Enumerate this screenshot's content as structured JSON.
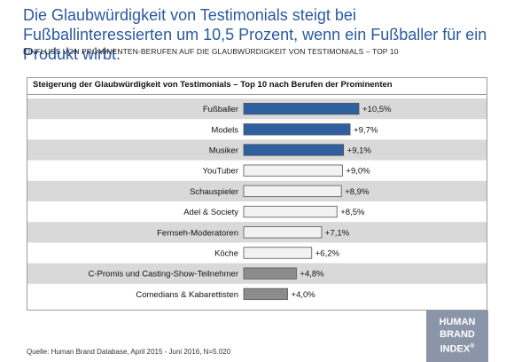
{
  "headline": "Die Glaubwürdigkeit von Testimonials steigt bei Fußballinteressierten um 10,5 Prozent, wenn ein Fußballer für ein Produkt wirbt.",
  "subtitle": "EINFLUSS VON PROMINENTEN-BERUFEN AUF DIE GLAUBWÜRDIGKEIT VON TESTIMONIALS – TOP 10",
  "source": "Quelle: Human Brand Database, April 2015 - Juni 2016, N=5.020",
  "logo": {
    "line1": "HUMAN",
    "line2": "BRAND",
    "line3": "INDEX",
    "mark": "®"
  },
  "chart_data": {
    "type": "bar",
    "orientation": "horizontal",
    "title": "Steigerung der Glaubwürdigkeit von Testimonials – Top 10 nach Berufen der Prominenten",
    "categories": [
      "Fußballer",
      "Models",
      "Musiker",
      "YouTuber",
      "Schauspieler",
      "Adel & Society",
      "Fernseh-Moderatoren",
      "Köche",
      "C-Promis und Casting-Show-Teilnehmer",
      "Comedians & Kabarettisten"
    ],
    "values": [
      10.5,
      9.7,
      9.1,
      9.0,
      8.9,
      8.5,
      7.1,
      6.2,
      4.8,
      4.0
    ],
    "labels": [
      "+10,5%",
      "+9,7%",
      "+9,1%",
      "+9,0%",
      "+8,9%",
      "+8,5%",
      "+7,1%",
      "+6,2%",
      "+4,8%",
      "+4,0%"
    ],
    "bar_groups": [
      "top",
      "top",
      "top",
      "middle",
      "middle",
      "middle",
      "middle",
      "middle",
      "bottom",
      "bottom"
    ],
    "xlim": [
      0,
      12
    ],
    "grid": false,
    "legend": "none",
    "colors": {
      "top": "#2e5f9e",
      "middle": "#f2f2f2",
      "bottom": "#8c8c8c",
      "bar_border": "#555555",
      "band": "#d9d9d9"
    }
  }
}
